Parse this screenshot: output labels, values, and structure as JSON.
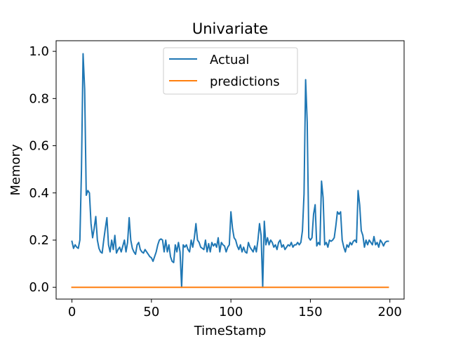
{
  "chart_data": {
    "type": "line",
    "title": "Univariate",
    "xlabel": "TimeStamp",
    "ylabel": "Memory",
    "xlim": [
      -9.95,
      208.95
    ],
    "ylim": [
      -0.05,
      1.045
    ],
    "xticks": [
      0,
      50,
      100,
      150,
      200
    ],
    "xtick_labels": [
      "0",
      "50",
      "100",
      "150",
      "200"
    ],
    "yticks": [
      0.0,
      0.2,
      0.4,
      0.6,
      0.8,
      1.0
    ],
    "ytick_labels": [
      "0.0",
      "0.2",
      "0.4",
      "0.6",
      "0.8",
      "1.0"
    ],
    "grid": false,
    "legend_position": "upper-center",
    "series": [
      {
        "name": "Actual",
        "color": "#1f77b4",
        "x": [
          0,
          1,
          2,
          3,
          4,
          5,
          6,
          7,
          8,
          9,
          10,
          11,
          12,
          13,
          14,
          15,
          16,
          17,
          18,
          19,
          20,
          21,
          22,
          23,
          24,
          25,
          26,
          27,
          28,
          29,
          30,
          31,
          32,
          33,
          34,
          35,
          36,
          37,
          38,
          39,
          40,
          41,
          42,
          43,
          44,
          45,
          46,
          47,
          48,
          49,
          50,
          51,
          52,
          53,
          54,
          55,
          56,
          57,
          58,
          59,
          60,
          61,
          62,
          63,
          64,
          65,
          66,
          67,
          68,
          69,
          70,
          71,
          72,
          73,
          74,
          75,
          76,
          77,
          78,
          79,
          80,
          81,
          82,
          83,
          84,
          85,
          86,
          87,
          88,
          89,
          90,
          91,
          92,
          93,
          94,
          95,
          96,
          97,
          98,
          99,
          100,
          101,
          102,
          103,
          104,
          105,
          106,
          107,
          108,
          109,
          110,
          111,
          112,
          113,
          114,
          115,
          116,
          117,
          118,
          119,
          120,
          121,
          122,
          123,
          124,
          125,
          126,
          127,
          128,
          129,
          130,
          131,
          132,
          133,
          134,
          135,
          136,
          137,
          138,
          139,
          140,
          141,
          142,
          143,
          144,
          145,
          146,
          147,
          148,
          149,
          150,
          151,
          152,
          153,
          154,
          155,
          156,
          157,
          158,
          159,
          160,
          161,
          162,
          163,
          164,
          165,
          166,
          167,
          168,
          169,
          170,
          171,
          172,
          173,
          174,
          175,
          176,
          177,
          178,
          179,
          180,
          181,
          182,
          183,
          184,
          185,
          186,
          187,
          188,
          189,
          190,
          191,
          192,
          193,
          194,
          195,
          196,
          197,
          198,
          199
        ],
        "values": [
          0.195,
          0.165,
          0.18,
          0.17,
          0.165,
          0.2,
          0.5,
          0.99,
          0.84,
          0.39,
          0.41,
          0.4,
          0.27,
          0.21,
          0.25,
          0.3,
          0.2,
          0.165,
          0.15,
          0.145,
          0.2,
          0.25,
          0.295,
          0.18,
          0.15,
          0.2,
          0.16,
          0.22,
          0.145,
          0.16,
          0.17,
          0.15,
          0.175,
          0.2,
          0.15,
          0.19,
          0.295,
          0.2,
          0.165,
          0.15,
          0.14,
          0.18,
          0.19,
          0.16,
          0.15,
          0.145,
          0.16,
          0.15,
          0.14,
          0.13,
          0.125,
          0.11,
          0.13,
          0.15,
          0.18,
          0.2,
          0.205,
          0.2,
          0.15,
          0.2,
          0.15,
          0.18,
          0.13,
          0.11,
          0.105,
          0.18,
          0.15,
          0.19,
          0.15,
          0.0,
          0.18,
          0.17,
          0.18,
          0.16,
          0.15,
          0.2,
          0.17,
          0.21,
          0.27,
          0.2,
          0.19,
          0.17,
          0.165,
          0.16,
          0.2,
          0.15,
          0.185,
          0.15,
          0.19,
          0.175,
          0.185,
          0.17,
          0.21,
          0.15,
          0.19,
          0.18,
          0.175,
          0.15,
          0.17,
          0.18,
          0.32,
          0.25,
          0.21,
          0.2,
          0.175,
          0.16,
          0.18,
          0.15,
          0.17,
          0.15,
          0.145,
          0.19,
          0.17,
          0.16,
          0.15,
          0.175,
          0.15,
          0.2,
          0.27,
          0.22,
          0.0,
          0.28,
          0.18,
          0.21,
          0.18,
          0.2,
          0.19,
          0.17,
          0.18,
          0.16,
          0.19,
          0.2,
          0.17,
          0.18,
          0.16,
          0.17,
          0.18,
          0.175,
          0.19,
          0.17,
          0.18,
          0.18,
          0.19,
          0.18,
          0.19,
          0.24,
          0.395,
          0.88,
          0.7,
          0.21,
          0.2,
          0.21,
          0.31,
          0.35,
          0.175,
          0.19,
          0.18,
          0.45,
          0.38,
          0.18,
          0.19,
          0.17,
          0.2,
          0.195,
          0.2,
          0.21,
          0.26,
          0.32,
          0.31,
          0.32,
          0.2,
          0.17,
          0.15,
          0.18,
          0.17,
          0.19,
          0.18,
          0.195,
          0.2,
          0.19,
          0.41,
          0.35,
          0.24,
          0.22,
          0.17,
          0.2,
          0.18,
          0.2,
          0.19,
          0.18,
          0.215,
          0.18,
          0.19,
          0.17,
          0.2,
          0.19,
          0.175,
          0.19,
          0.195,
          0.195
        ]
      },
      {
        "name": "predictions",
        "color": "#ff7f0e",
        "x": [
          0,
          199
        ],
        "values": [
          0.0,
          0.0
        ]
      }
    ]
  }
}
